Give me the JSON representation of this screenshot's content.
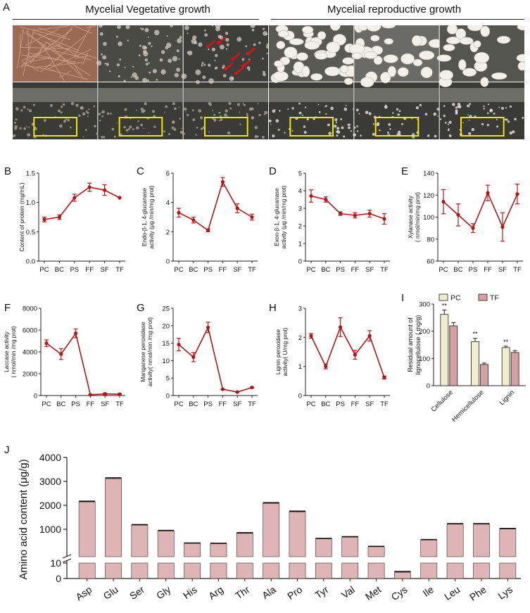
{
  "panel_a": {
    "label": "A",
    "stage_left": "Mycelial Vegetative growth",
    "stage_right": "Mycelial reproductive growth"
  },
  "chart_data": [
    {
      "panel": "B",
      "type": "line",
      "categories": [
        "PC",
        "BC",
        "PS",
        "FF",
        "SF",
        "TF"
      ],
      "ylabel": "Content of protein (mg/mL)",
      "ylim": [
        0,
        1.5
      ],
      "yticks": [
        "0.0",
        "0.5",
        "1.0",
        "1.5"
      ],
      "values": [
        0.71,
        0.75,
        1.08,
        1.26,
        1.21,
        1.08
      ],
      "errors": [
        0.04,
        0.04,
        0.06,
        0.07,
        0.09,
        0.0
      ]
    },
    {
      "panel": "C",
      "type": "line",
      "categories": [
        "PC",
        "BC",
        "PS",
        "FF",
        "SF",
        "TF"
      ],
      "ylabel": "Endo-β-1, 4-glucanase activity (μg /min/mg prot)",
      "ylim": [
        0,
        6
      ],
      "yticks": [
        "0",
        "2",
        "4",
        "6"
      ],
      "values": [
        3.3,
        2.8,
        2.1,
        5.4,
        3.6,
        3.0
      ],
      "errors": [
        0.3,
        0.2,
        0.1,
        0.3,
        0.3,
        0.2
      ]
    },
    {
      "panel": "D",
      "type": "line",
      "categories": [
        "PC",
        "BC",
        "PS",
        "FF",
        "SF",
        "TF"
      ],
      "ylabel": "Exon-β-1, 4-glucanase activity (μg /min/mg prot)",
      "ylim": [
        0,
        5
      ],
      "yticks": [
        "0",
        "1",
        "2",
        "3",
        "4",
        "5"
      ],
      "values": [
        3.7,
        3.5,
        2.7,
        2.6,
        2.7,
        2.4
      ],
      "errors": [
        0.35,
        0.15,
        0.1,
        0.15,
        0.2,
        0.3
      ]
    },
    {
      "panel": "E",
      "type": "line",
      "categories": [
        "PC",
        "BC",
        "PS",
        "FF",
        "SF",
        "TF"
      ],
      "ylabel": "Xylanase activity ( nmol/min/mg prot)",
      "ylim": [
        60,
        140
      ],
      "yticks": [
        "60",
        "80",
        "100",
        "120",
        "140"
      ],
      "values": [
        114,
        102,
        90,
        122,
        91,
        121
      ],
      "errors": [
        11,
        10,
        4,
        7,
        13,
        9
      ]
    },
    {
      "panel": "F",
      "type": "line",
      "categories": [
        "PC",
        "BC",
        "PS",
        "FF",
        "SF",
        "TF"
      ],
      "ylabel": "Laccase activity ( nmol/min /mg prot)",
      "ylim": [
        0,
        8000
      ],
      "yticks": [
        "0",
        "2000",
        "4000",
        "6000",
        "8000"
      ],
      "values": [
        4800,
        3800,
        5700,
        70,
        150,
        120
      ],
      "errors": [
        300,
        500,
        400,
        50,
        80,
        60
      ]
    },
    {
      "panel": "G",
      "type": "line",
      "categories": [
        "PC",
        "BC",
        "PS",
        "FF",
        "SF",
        "TF"
      ],
      "ylabel": "Manganese peroxidase activity( nmol/min /mg prot)",
      "ylim": [
        0,
        25
      ],
      "yticks": [
        "0",
        "5",
        "10",
        "15",
        "20",
        "25"
      ],
      "values": [
        14.6,
        11.0,
        19.5,
        1.8,
        1.0,
        2.3
      ],
      "errors": [
        1.8,
        1.3,
        1.5,
        0.1,
        0.1,
        0.1
      ]
    },
    {
      "panel": "H",
      "type": "line",
      "categories": [
        "PC",
        "BC",
        "PS",
        "FF",
        "SF",
        "TF"
      ],
      "ylabel": "Lignin peroxidase activity( U/mg prot)",
      "ylim": [
        0,
        3
      ],
      "yticks": [
        "0",
        "1",
        "2",
        "3"
      ],
      "values": [
        2.05,
        1.0,
        2.35,
        1.4,
        2.05,
        0.62
      ],
      "errors": [
        0.08,
        0.08,
        0.32,
        0.15,
        0.18,
        0.05
      ]
    },
    {
      "panel": "I",
      "type": "bar",
      "categories": [
        "Cellulose",
        "Hemicellulose",
        "Lignin"
      ],
      "ylabel": "Residual amount of lignocellulose ( mg/g)",
      "ylim": [
        0,
        300
      ],
      "yticks": [
        "0",
        "100",
        "200",
        "300"
      ],
      "legend": [
        "PC",
        "TF"
      ],
      "series": [
        {
          "name": "PC",
          "values": [
            262,
            162,
            140
          ],
          "errors": [
            16,
            12,
            5
          ]
        },
        {
          "name": "TF",
          "values": [
            220,
            78,
            122
          ],
          "errors": [
            12,
            5,
            7
          ]
        }
      ],
      "significance": [
        "**",
        "**",
        "**"
      ],
      "colors": [
        "#f0ecd0",
        "#d4a0a3"
      ]
    },
    {
      "panel": "J",
      "type": "bar",
      "categories": [
        "Asp",
        "Glu",
        "Ser",
        "Gly",
        "His",
        "Arg",
        "Thr",
        "Ala",
        "Pro",
        "Tyr",
        "Val",
        "Met",
        "Cys",
        "Ile",
        "Leu",
        "Phe",
        "Lys"
      ],
      "ylabel": "Amino acid content (μg/g)",
      "yticks_upper": [
        "1000",
        "2000",
        "3000",
        "4000"
      ],
      "yticks_lower": [
        "0",
        "10"
      ],
      "axis_break": true,
      "values": [
        2140,
        3110,
        1170,
        930,
        410,
        400,
        830,
        2080,
        1720,
        600,
        670,
        270,
        4,
        550,
        1210,
        1210,
        1010
      ],
      "errors": [
        30,
        40,
        25,
        20,
        15,
        15,
        25,
        30,
        35,
        15,
        20,
        15,
        0.5,
        20,
        25,
        25,
        20
      ],
      "color": "#deb4b4"
    }
  ],
  "colors": {
    "line": "#b01818",
    "axis": "#222222"
  }
}
